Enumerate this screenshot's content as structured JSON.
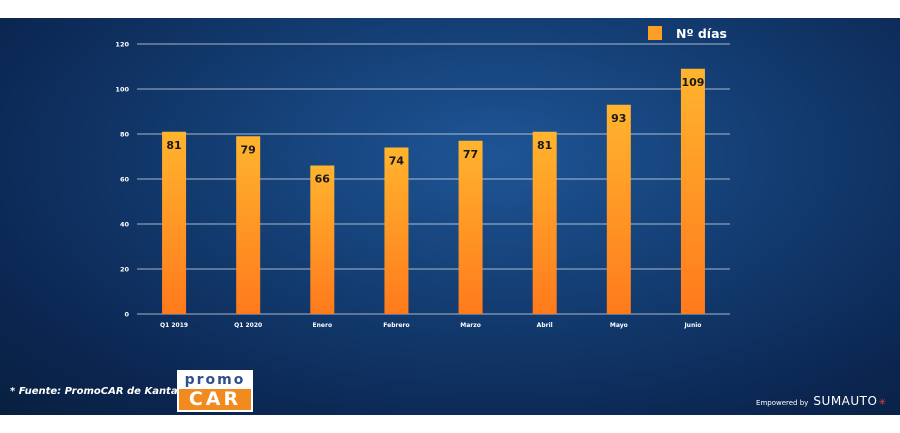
{
  "chart_data": {
    "type": "bar",
    "categories": [
      "Q1 2019",
      "Q1 2020",
      "Enero",
      "Febrero",
      "Marzo",
      "Abril",
      "Mayo",
      "Junio"
    ],
    "series": [
      {
        "name": "Nº días",
        "values": [
          81,
          79,
          66,
          74,
          77,
          81,
          93,
          109
        ]
      }
    ],
    "yticks": [
      "0",
      "20",
      "40",
      "60",
      "80",
      "100",
      "120"
    ],
    "ylim": [
      0,
      120
    ],
    "grid": true,
    "legend_position": "top-right",
    "colors": {
      "bar_top": "#ffb42e",
      "bar_bottom": "#ff7a1c",
      "background": "#123a6e"
    }
  },
  "source_note": "* Fuente: PromoCAR de Kantar.",
  "logo": {
    "top": "promo",
    "bottom": "CAR"
  },
  "footer": {
    "empowered_by": "Empowered by",
    "brand": "SUMAUTO"
  }
}
